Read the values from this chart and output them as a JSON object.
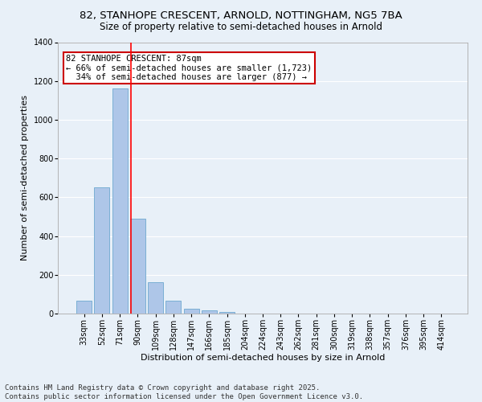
{
  "title_line1": "82, STANHOPE CRESCENT, ARNOLD, NOTTINGHAM, NG5 7BA",
  "title_line2": "Size of property relative to semi-detached houses in Arnold",
  "xlabel": "Distribution of semi-detached houses by size in Arnold",
  "ylabel": "Number of semi-detached properties",
  "categories": [
    "33sqm",
    "52sqm",
    "71sqm",
    "90sqm",
    "109sqm",
    "128sqm",
    "147sqm",
    "166sqm",
    "185sqm",
    "204sqm",
    "224sqm",
    "243sqm",
    "262sqm",
    "281sqm",
    "300sqm",
    "319sqm",
    "338sqm",
    "357sqm",
    "376sqm",
    "395sqm",
    "414sqm"
  ],
  "values": [
    65,
    650,
    1160,
    490,
    160,
    65,
    25,
    15,
    10,
    0,
    0,
    0,
    0,
    0,
    0,
    0,
    0,
    0,
    0,
    0,
    0
  ],
  "bar_color": "#aec6e8",
  "bar_edgecolor": "#7aafd4",
  "redline_x": 2.62,
  "annotation_text": "82 STANHOPE CRESCENT: 87sqm\n← 66% of semi-detached houses are smaller (1,723)\n  34% of semi-detached houses are larger (877) →",
  "annotation_box_color": "#ffffff",
  "annotation_box_edgecolor": "#cc0000",
  "ylim": [
    0,
    1400
  ],
  "yticks": [
    0,
    200,
    400,
    600,
    800,
    1000,
    1200,
    1400
  ],
  "background_color": "#e8f0f8",
  "plot_bg_color": "#e8f0f8",
  "footer_line1": "Contains HM Land Registry data © Crown copyright and database right 2025.",
  "footer_line2": "Contains public sector information licensed under the Open Government Licence v3.0.",
  "title_fontsize": 9.5,
  "subtitle_fontsize": 8.5,
  "axis_label_fontsize": 8,
  "tick_fontsize": 7,
  "annotation_fontsize": 7.5,
  "footer_fontsize": 6.5
}
